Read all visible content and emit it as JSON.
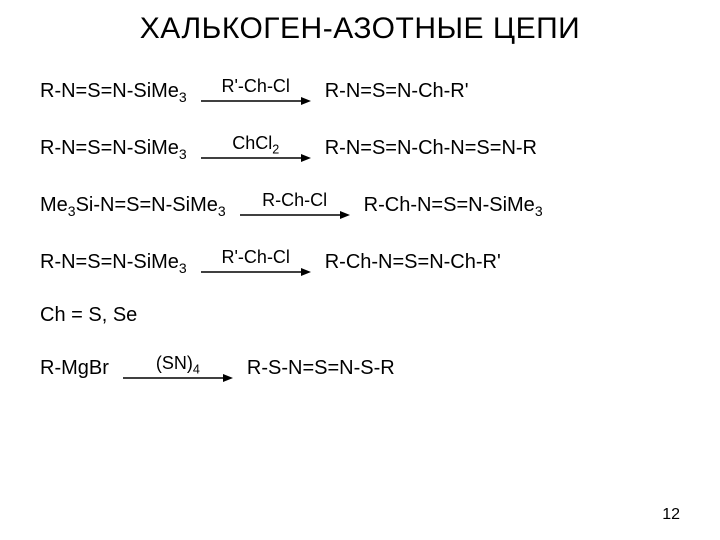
{
  "title": "ХАЛЬКОГЕН-АЗОТНЫЕ ЦЕПИ",
  "page_number": "12",
  "arrow": {
    "length": 110,
    "stroke": "#000000",
    "stroke_width": 1.4
  },
  "reactions": [
    {
      "reactant_html": "R-N=S=N-SiMe<sub>3</sub>",
      "reagent_html": "R'-Ch-Cl",
      "product_html": "R-N=S=N-Ch-R'"
    },
    {
      "reactant_html": "R-N=S=N-SiMe<sub>3</sub>",
      "reagent_html": "ChCl<sub>2</sub>",
      "product_html": "R-N=S=N-Ch-N=S=N-R"
    },
    {
      "reactant_html": "Me<sub>3</sub>Si-N=S=N-SiMe<sub>3</sub>",
      "reagent_html": "R-Ch-Cl",
      "product_html": "R-Ch-N=S=N-SiMe<sub>3</sub>"
    },
    {
      "reactant_html": "R-N=S=N-SiMe<sub>3</sub>",
      "reagent_html": "R'-Ch-Cl",
      "product_html": "R-Ch-N=S=N-Ch-R'"
    }
  ],
  "note_html": "Ch = S, Se",
  "final_reaction": {
    "reactant_html": "R-MgBr",
    "reagent_html": "(SN)<sub>4</sub>",
    "product_html": "R-S-N=S=N-S-R"
  }
}
